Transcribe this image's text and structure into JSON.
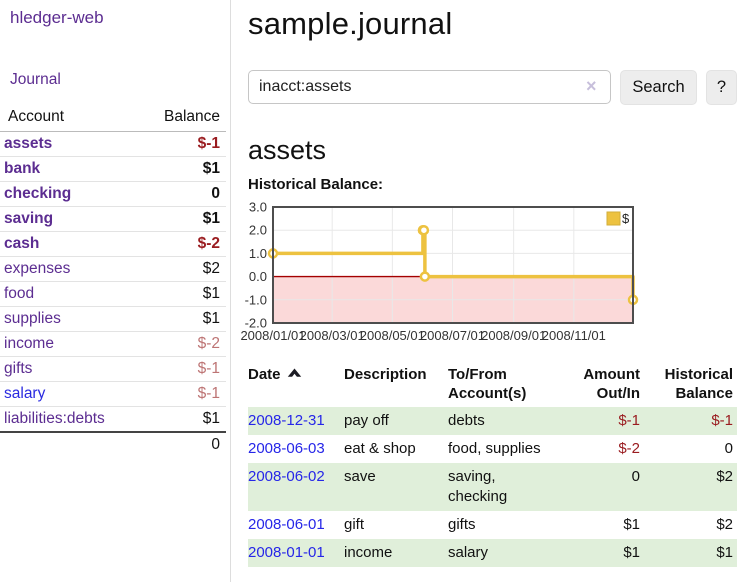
{
  "brand": {
    "title": "hledger-web"
  },
  "nav": {
    "journal": "Journal"
  },
  "sidebar": {
    "header": {
      "account": "Account",
      "balance": "Balance"
    },
    "accounts": [
      {
        "name": "assets",
        "balance": "$-1",
        "indent": 1,
        "bold": true,
        "balance_style": "neg-strong"
      },
      {
        "name": "bank",
        "balance": "$1",
        "indent": 2,
        "bold": true,
        "balance_style": "normal"
      },
      {
        "name": "checking",
        "balance": "0",
        "indent": 3,
        "bold": true,
        "balance_style": "normal"
      },
      {
        "name": "saving",
        "balance": "$1",
        "indent": 3,
        "bold": true,
        "balance_style": "normal"
      },
      {
        "name": "cash",
        "balance": "$-2",
        "indent": 2,
        "bold": true,
        "balance_style": "neg-strong"
      },
      {
        "name": "expenses",
        "balance": "$2",
        "indent": 1,
        "bold": false,
        "balance_style": "normal"
      },
      {
        "name": "food",
        "balance": "$1",
        "indent": 2,
        "bold": false,
        "balance_style": "normal"
      },
      {
        "name": "supplies",
        "balance": "$1",
        "indent": 2,
        "bold": false,
        "balance_style": "normal"
      },
      {
        "name": "income",
        "balance": "$-2",
        "indent": 1,
        "bold": false,
        "balance_style": "neg-muted"
      },
      {
        "name": "gifts",
        "balance": "$-1",
        "indent": 2,
        "bold": false,
        "balance_style": "neg-muted"
      },
      {
        "name": "salary",
        "balance": "$-1",
        "indent": 2,
        "bold": false,
        "balance_style": "neg-muted",
        "link_style": "blue"
      },
      {
        "name": "liabilities:debts",
        "balance": "$1",
        "indent": 1,
        "bold": false,
        "balance_style": "normal"
      }
    ],
    "total": "0"
  },
  "page": {
    "title": "sample.journal"
  },
  "search": {
    "value": "inacct:assets",
    "clear": "×",
    "search_button": "Search",
    "help_button": "?"
  },
  "account_view": {
    "heading": "assets",
    "section_label": "Historical Balance:"
  },
  "chart_data": {
    "type": "line",
    "title": "Historical Balance:",
    "step": true,
    "legend": "$",
    "legend_position": "top-right",
    "series": [
      {
        "name": "$",
        "points": [
          {
            "date": "2008-01-01",
            "value": 1
          },
          {
            "date": "2008-06-01",
            "value": 2
          },
          {
            "date": "2008-06-02",
            "value": 2
          },
          {
            "date": "2008-06-03",
            "value": 0
          },
          {
            "date": "2008-12-31",
            "value": -1
          }
        ]
      }
    ],
    "xlim": [
      "2008-01-01",
      "2008-12-31"
    ],
    "ylim": [
      -2,
      3
    ],
    "ytick_labels": [
      "3.0",
      "2.0",
      "1.0",
      "0.0",
      "-1.0",
      "-2.0"
    ],
    "yticks": [
      3,
      2,
      1,
      0,
      -1,
      -2
    ],
    "xticks": [
      "2008-01-01",
      "2008-03-01",
      "2008-05-01",
      "2008-07-01",
      "2008-09-01",
      "2008-11-01"
    ],
    "xtick_labels": [
      "2008/01/01",
      "2008/03/01",
      "2008/05/01",
      "2008/07/01",
      "2008/09/01",
      "2008/11/01"
    ],
    "grid": true,
    "colors": {
      "line": "#edc240",
      "marker_fill": "#ffffff",
      "negative_area": "#fbd9d9",
      "zero_line": "#a40000",
      "gridline": "#e8e8e8",
      "border": "#4d4d4d",
      "tick_text": "#333333"
    }
  },
  "transactions": {
    "headers": {
      "date": "Date",
      "description": "Description",
      "accounts": "To/From Account(s)",
      "amount": "Amount Out/In",
      "balance": "Historical Balance"
    },
    "rows": [
      {
        "date": "2008-12-31",
        "description": "pay off",
        "accounts": "debts",
        "amount": "$-1",
        "amount_style": "neg-strong",
        "balance": "$-1",
        "balance_style": "neg-strong"
      },
      {
        "date": "2008-06-03",
        "description": "eat & shop",
        "accounts": "food, supplies",
        "amount": "$-2",
        "amount_style": "neg-strong",
        "balance": "0",
        "balance_style": "normal"
      },
      {
        "date": "2008-06-02",
        "description": "save",
        "accounts": "saving, checking",
        "amount": "0",
        "amount_style": "normal",
        "balance": "$2",
        "balance_style": "normal"
      },
      {
        "date": "2008-06-01",
        "description": "gift",
        "accounts": "gifts",
        "amount": "$1",
        "amount_style": "normal",
        "balance": "$2",
        "balance_style": "normal"
      },
      {
        "date": "2008-01-01",
        "description": "income",
        "accounts": "salary",
        "amount": "$1",
        "amount_style": "normal",
        "balance": "$1",
        "balance_style": "normal"
      }
    ]
  },
  "colors": {
    "accent_purple": "#5c2d91",
    "link_blue": "#2626e8",
    "negative_strong": "#9a1c20",
    "negative_muted": "#bd7474",
    "row_stripe_green": "#e0efda"
  }
}
